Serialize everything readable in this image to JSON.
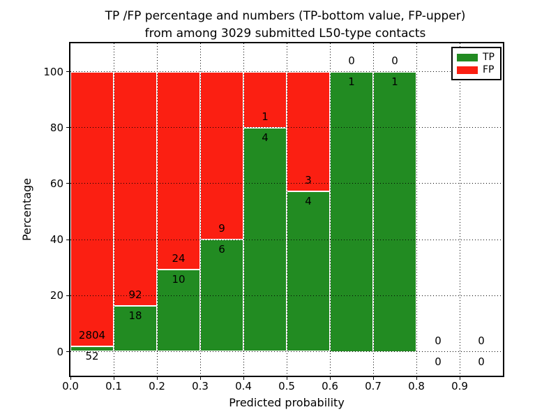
{
  "title": {
    "line1": "TP /FP percentage and numbers (TP-bottom value, FP-upper)",
    "line2": "from among 3029 submitted L50-type contacts"
  },
  "axes": {
    "xlabel": "Predicted probability",
    "ylabel": "Percentage",
    "xtick_labels": [
      "0.0",
      "0.1",
      "0.2",
      "0.3",
      "0.4",
      "0.5",
      "0.6",
      "0.7",
      "0.8",
      "0.9"
    ],
    "ytick_labels": [
      "0",
      "20",
      "40",
      "60",
      "80",
      "100"
    ]
  },
  "legend": {
    "items": [
      {
        "label": "TP",
        "color": "#228b22"
      },
      {
        "label": "FP",
        "color": "#fb1f12"
      }
    ]
  },
  "colors": {
    "tp": "#228b22",
    "fp": "#fb1f12",
    "grid": "#000000",
    "background": "#ffffff"
  },
  "chart_data": {
    "type": "bar",
    "variant": "stacked-percentage",
    "title": "TP /FP percentage and numbers (TP-bottom value, FP-upper) from among 3029 submitted L50-type contacts",
    "xlabel": "Predicted probability",
    "ylabel": "Percentage",
    "total_contacts": 3029,
    "xlim": [
      0.0,
      1.0
    ],
    "ylim_ticks": [
      0,
      20,
      40,
      60,
      80,
      100
    ],
    "grid": "dotted-both-axes",
    "legend_position": "upper-right",
    "bin_width": 0.1,
    "categories": [
      "0.0-0.1",
      "0.1-0.2",
      "0.2-0.3",
      "0.3-0.4",
      "0.4-0.5",
      "0.5-0.6",
      "0.6-0.7",
      "0.7-0.8",
      "0.8-0.9",
      "0.9-1.0"
    ],
    "series": [
      {
        "name": "TP",
        "color": "#228b22",
        "counts": [
          52,
          18,
          10,
          6,
          4,
          4,
          1,
          1,
          0,
          0
        ]
      },
      {
        "name": "FP",
        "color": "#fb1f12",
        "counts": [
          2804,
          92,
          24,
          9,
          1,
          3,
          0,
          0,
          0,
          0
        ]
      }
    ],
    "tp_percent_of_bin": [
      1.82,
      16.36,
      29.41,
      40.0,
      80.0,
      57.14,
      100.0,
      100.0,
      null,
      null
    ]
  }
}
